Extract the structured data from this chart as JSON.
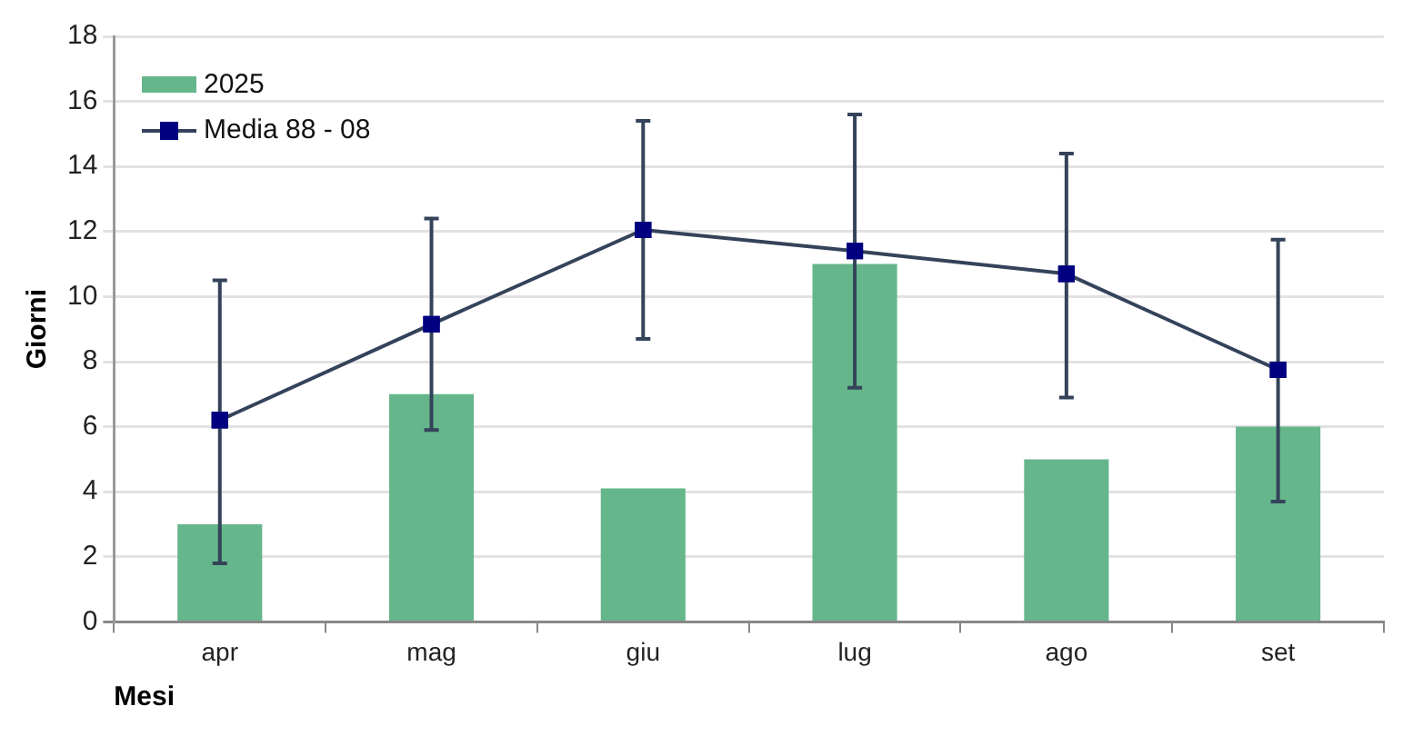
{
  "chart_data": {
    "type": "bar",
    "xlabel": "Mesi",
    "ylabel": "Giorni",
    "categories": [
      "apr",
      "mag",
      "giu",
      "lug",
      "ago",
      "set"
    ],
    "series": [
      {
        "name": "2025",
        "color": "#66b68c",
        "values": [
          3,
          7,
          4.1,
          11,
          5,
          6
        ]
      },
      {
        "name": "Media 88 - 08",
        "type": "line",
        "color": "#34435a",
        "marker": "square",
        "values": [
          6.2,
          9.15,
          12.05,
          11.4,
          10.7,
          7.75
        ],
        "errors": [
          [
            1.8,
            10.5
          ],
          [
            5.9,
            12.4
          ],
          [
            8.7,
            15.4
          ],
          [
            7.2,
            15.6
          ],
          [
            6.9,
            14.4
          ],
          [
            3.7,
            11.75
          ]
        ]
      }
    ],
    "ylim": [
      0,
      18
    ],
    "yticks": [
      0,
      2,
      4,
      6,
      8,
      10,
      12,
      14,
      16,
      18
    ],
    "grid": "y",
    "legend": "top left"
  }
}
